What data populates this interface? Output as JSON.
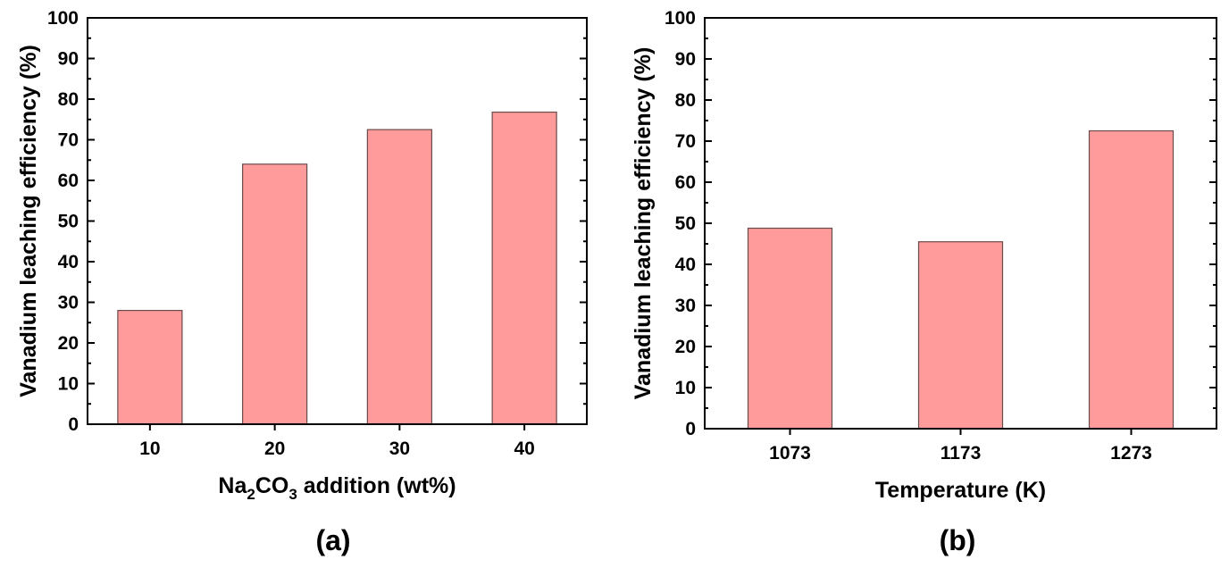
{
  "chart_data": [
    {
      "type": "bar",
      "panel_label": "(a)",
      "categories": [
        "10",
        "20",
        "30",
        "40"
      ],
      "values": [
        28,
        64,
        72.5,
        76.8
      ],
      "xlabel_parts": {
        "pre": "Na",
        "sub1": "2",
        "mid": "CO",
        "sub2": "3",
        "post": " addition (wt%)"
      },
      "ylabel": "Vanadium leaching efficiency (%)",
      "ylim": [
        0,
        100
      ],
      "yticks": [
        "0",
        "10",
        "20",
        "30",
        "40",
        "50",
        "60",
        "70",
        "80",
        "90",
        "100"
      ],
      "bar_color": "#ff9b9b"
    },
    {
      "type": "bar",
      "panel_label": "(b)",
      "categories": [
        "1073",
        "1173",
        "1273"
      ],
      "values": [
        48.8,
        45.5,
        72.5
      ],
      "xlabel": "Temperature (K)",
      "ylabel": "Vanadium leaching efficiency (%)",
      "ylim": [
        0,
        100
      ],
      "yticks": [
        "0",
        "10",
        "20",
        "30",
        "40",
        "50",
        "60",
        "70",
        "80",
        "90",
        "100"
      ],
      "bar_color": "#ff9b9b"
    }
  ]
}
